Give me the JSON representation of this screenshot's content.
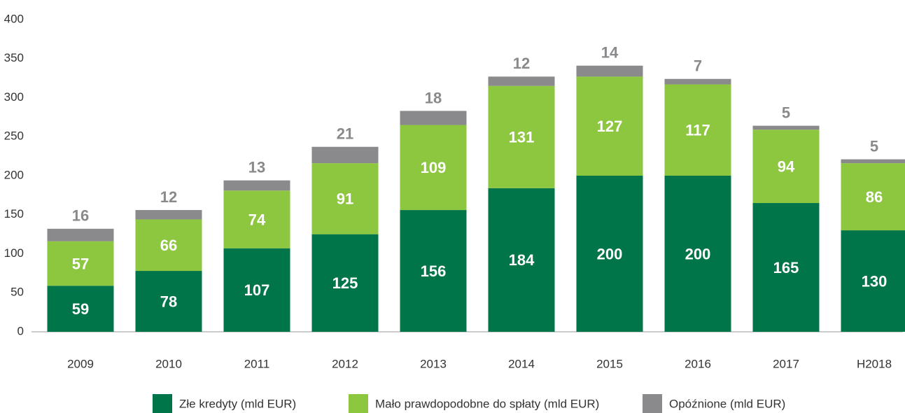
{
  "chart_data": {
    "type": "bar",
    "stacked": true,
    "categories": [
      "2009",
      "2010",
      "2011",
      "2012",
      "2013",
      "2014",
      "2015",
      "2016",
      "2017",
      "H2018"
    ],
    "series": [
      {
        "name": "Złe kredyty (mld EUR)",
        "color": "#00754a",
        "values": [
          59,
          78,
          107,
          125,
          156,
          184,
          200,
          200,
          165,
          130
        ]
      },
      {
        "name": "Mało prawdopodobne do spłaty (mld EUR)",
        "color": "#8dc63f",
        "values": [
          57,
          66,
          74,
          91,
          109,
          131,
          127,
          117,
          94,
          86
        ]
      },
      {
        "name": "Opóźnione (mld EUR)",
        "color": "#8a8a8c",
        "values": [
          16,
          12,
          13,
          21,
          18,
          12,
          14,
          7,
          5,
          5
        ]
      }
    ],
    "ylim": [
      0,
      400
    ],
    "yticks": [
      0,
      50,
      100,
      150,
      200,
      250,
      300,
      350,
      400
    ],
    "grid": false,
    "legend": "bottom"
  }
}
